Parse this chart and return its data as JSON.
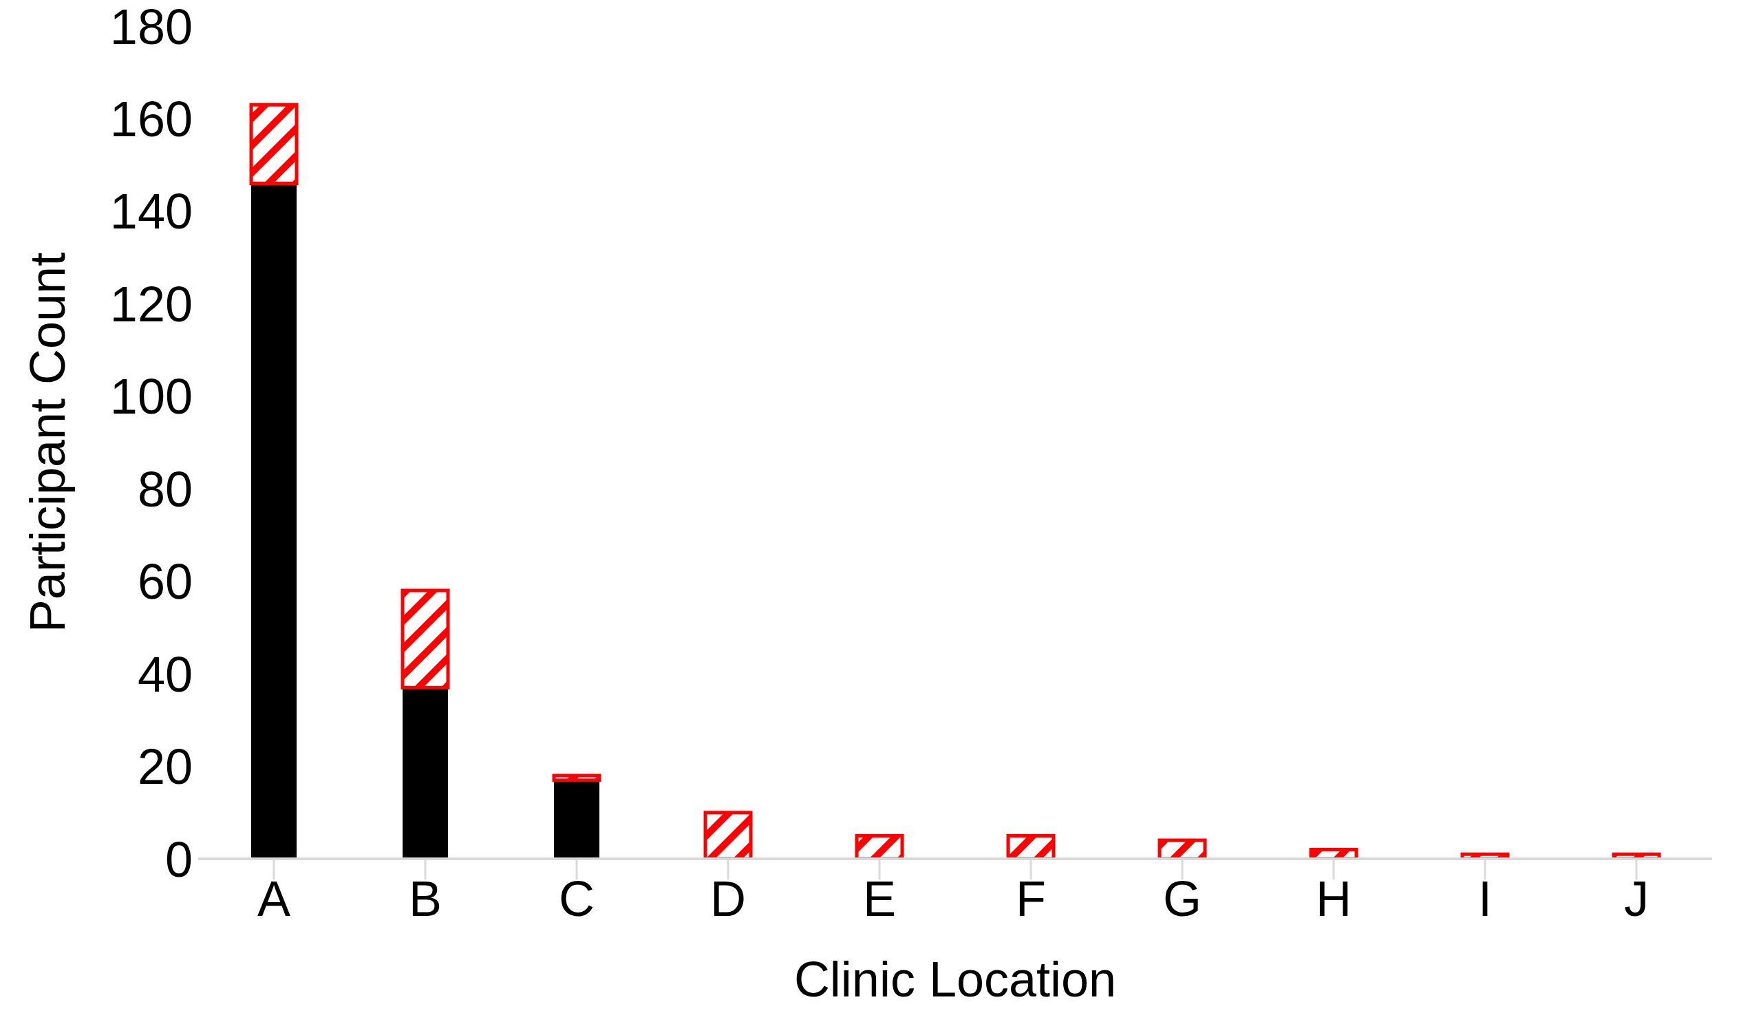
{
  "chart_data": {
    "type": "bar",
    "stacked": true,
    "xlabel": "Clinic Location",
    "ylabel": "Participant Count",
    "categories": [
      "A",
      "B",
      "C",
      "D",
      "E",
      "F",
      "G",
      "H",
      "I",
      "J"
    ],
    "series": [
      {
        "color": "#000000",
        "values": [
          146,
          37,
          17,
          null,
          null,
          null,
          null,
          null,
          null,
          null
        ]
      },
      {
        "color": "#ff0000",
        "values": [
          17,
          21,
          1,
          10,
          5,
          5,
          4,
          2,
          1,
          1
        ]
      }
    ],
    "ylim": [
      0,
      180
    ],
    "yticks": [
      0,
      20,
      40,
      60,
      80,
      100,
      120,
      140,
      160,
      180
    ],
    "grid": false,
    "legend": false
  }
}
